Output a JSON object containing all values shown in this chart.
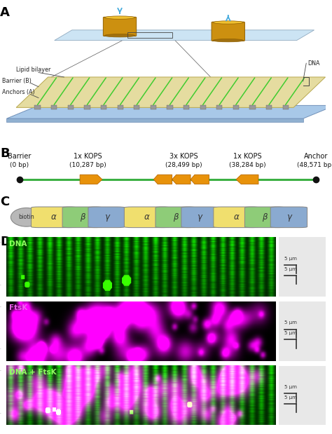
{
  "panel_labels": [
    "A",
    "B",
    "C",
    "D"
  ],
  "panel_label_fontsize": 13,
  "panel_label_weight": "bold",
  "background_color": "#ffffff",
  "panelB": {
    "labels_top": [
      "Barrier",
      "1x KOPS",
      "3x KOPS",
      "1x KOPS",
      "Anchor"
    ],
    "labels_bottom": [
      "(0 bp)",
      "(10,287 bp)",
      "(28,499 bp)",
      "(38,284 bp)",
      "(48,571 bp)"
    ],
    "positions": [
      0.04,
      0.255,
      0.555,
      0.755,
      0.97
    ],
    "line_color": "#3cb043",
    "dot_color": "#111111",
    "arrow_color": "#e8920a",
    "label_fontsize": 7.5
  },
  "panelC": {
    "biotin_color": "#b8b8b8",
    "alpha_color": "#f0df6e",
    "beta_color": "#8ecc78",
    "gamma_color": "#8aaad0",
    "repeats": 3,
    "label_fontsize": 8.5
  },
  "panelD": {
    "panels": [
      {
        "label": "DNA",
        "has_green": true,
        "has_magenta": false,
        "label_color": "#90ff60"
      },
      {
        "label": "FtsK",
        "has_green": false,
        "has_magenta": true,
        "label_color": "#f060f0"
      },
      {
        "label": "DNA + FtsK",
        "has_green": true,
        "has_magenta": true,
        "label_color": "#90ff60"
      }
    ],
    "green_bg": "#0a1a00",
    "magenta_bg": "#0a0010",
    "stripe_green": "#40cc30",
    "spot_green": "#aaff44",
    "spot_magenta": "#e050e0"
  }
}
